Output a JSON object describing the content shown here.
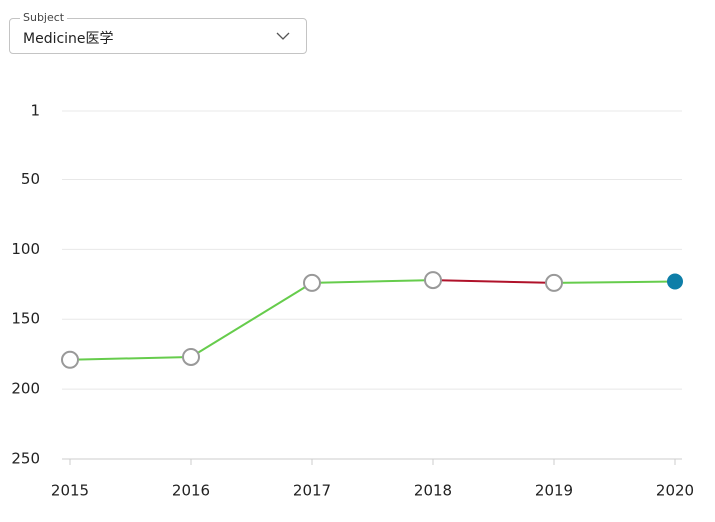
{
  "subject_select": {
    "label": "Subject",
    "value": "Medicine医学"
  },
  "chart_data": {
    "type": "line",
    "categories": [
      "2015",
      "2016",
      "2017",
      "2018",
      "2019",
      "2020"
    ],
    "values": [
      179,
      177,
      124,
      122,
      124,
      123
    ],
    "ylim": [
      250,
      1
    ],
    "yticks": [
      1,
      50,
      100,
      150,
      200,
      250
    ],
    "grid": true,
    "improve_color": "#66cc4c",
    "decline_color": "#b0122a",
    "marker_color": "#999999",
    "last_marker_color": "#0e7ea8"
  }
}
